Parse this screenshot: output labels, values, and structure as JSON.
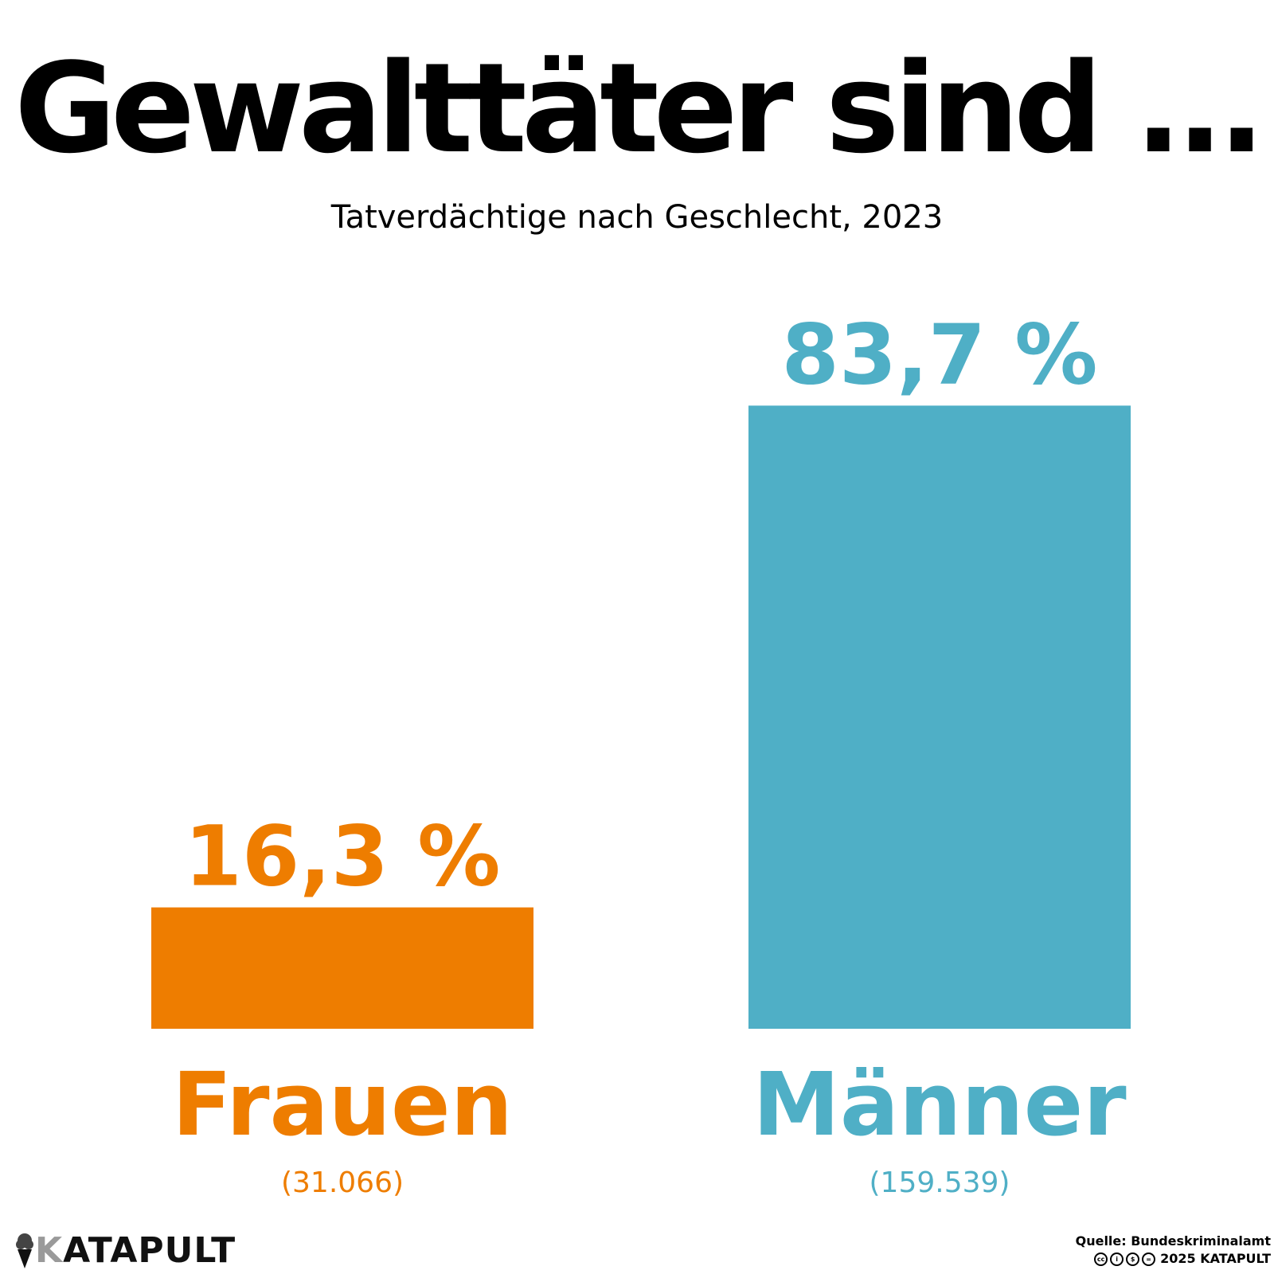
{
  "title": "Gewalttäter sind ...",
  "subtitle": "Tatverdächtige nach Geschlecht, 2023",
  "chart_data": {
    "type": "bar",
    "categories": [
      "Frauen",
      "Männer"
    ],
    "values": [
      16.3,
      83.7
    ],
    "value_labels": [
      "16,3 %",
      "83,7 %"
    ],
    "counts": [
      "(31.066)",
      "(159.539)"
    ],
    "colors": [
      "#ee7d00",
      "#4fafc6"
    ],
    "ylim": [
      0,
      100
    ],
    "grid": false,
    "axes_visible": false
  },
  "footer": {
    "logo": "KATAPULT",
    "source": "Quelle: Bundeskriminalamt",
    "copyright": "2025 KATAPULT",
    "license_icons": [
      "cc-icon",
      "by-icon",
      "nc-icon",
      "nd-icon"
    ]
  }
}
